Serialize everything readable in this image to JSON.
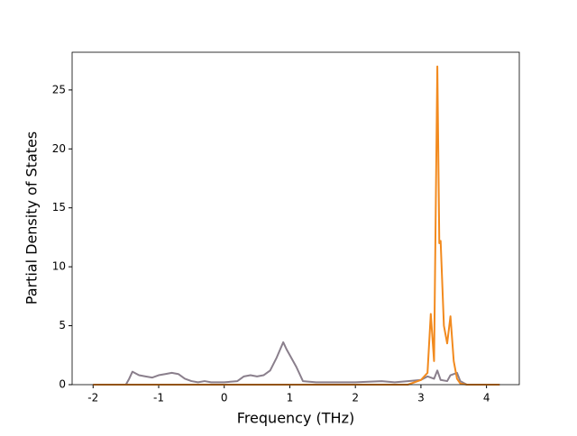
{
  "chart_data": {
    "type": "line",
    "xlabel": "Frequency (THz)",
    "ylabel": "Partial Density of States",
    "xlim": [
      -2.32,
      4.5
    ],
    "ylim": [
      0,
      28.2
    ],
    "xticks": [
      -2,
      -1,
      0,
      1,
      2,
      3,
      4
    ],
    "yticks": [
      0,
      5,
      10,
      15,
      20,
      25
    ],
    "series": [
      {
        "color": "#8a7f8c",
        "x": [
          -2,
          -1.5,
          -1.45,
          -1.4,
          -1.3,
          -1.2,
          -1.1,
          -1.0,
          -0.9,
          -0.8,
          -0.7,
          -0.6,
          -0.5,
          -0.4,
          -0.3,
          -0.2,
          0,
          0.2,
          0.3,
          0.4,
          0.5,
          0.6,
          0.7,
          0.8,
          0.9,
          0.95,
          1.0,
          1.1,
          1.2,
          1.4,
          1.6,
          2.0,
          2.4,
          2.6,
          2.8,
          3.0,
          3.1,
          3.2,
          3.25,
          3.3,
          3.4,
          3.45,
          3.55,
          3.6,
          3.7,
          4.2
        ],
        "values": [
          0,
          0,
          0.5,
          1.1,
          0.8,
          0.7,
          0.6,
          0.8,
          0.9,
          1.0,
          0.9,
          0.5,
          0.3,
          0.2,
          0.3,
          0.2,
          0.2,
          0.3,
          0.7,
          0.8,
          0.7,
          0.8,
          1.2,
          2.3,
          3.6,
          3.0,
          2.5,
          1.5,
          0.3,
          0.2,
          0.2,
          0.2,
          0.3,
          0.2,
          0.3,
          0.4,
          0.7,
          0.5,
          1.2,
          0.4,
          0.3,
          0.8,
          1.0,
          0.3,
          0,
          0
        ]
      },
      {
        "color": "#f28a1e",
        "x": [
          -2,
          2.8,
          3.0,
          3.1,
          3.15,
          3.2,
          3.25,
          3.28,
          3.3,
          3.35,
          3.4,
          3.45,
          3.5,
          3.55,
          3.6,
          3.7,
          4.2
        ],
        "values": [
          0,
          0,
          0.4,
          1,
          6,
          2,
          27,
          12,
          12.2,
          5,
          3.5,
          5.8,
          2,
          0.5,
          0.1,
          0,
          0
        ]
      }
    ]
  }
}
